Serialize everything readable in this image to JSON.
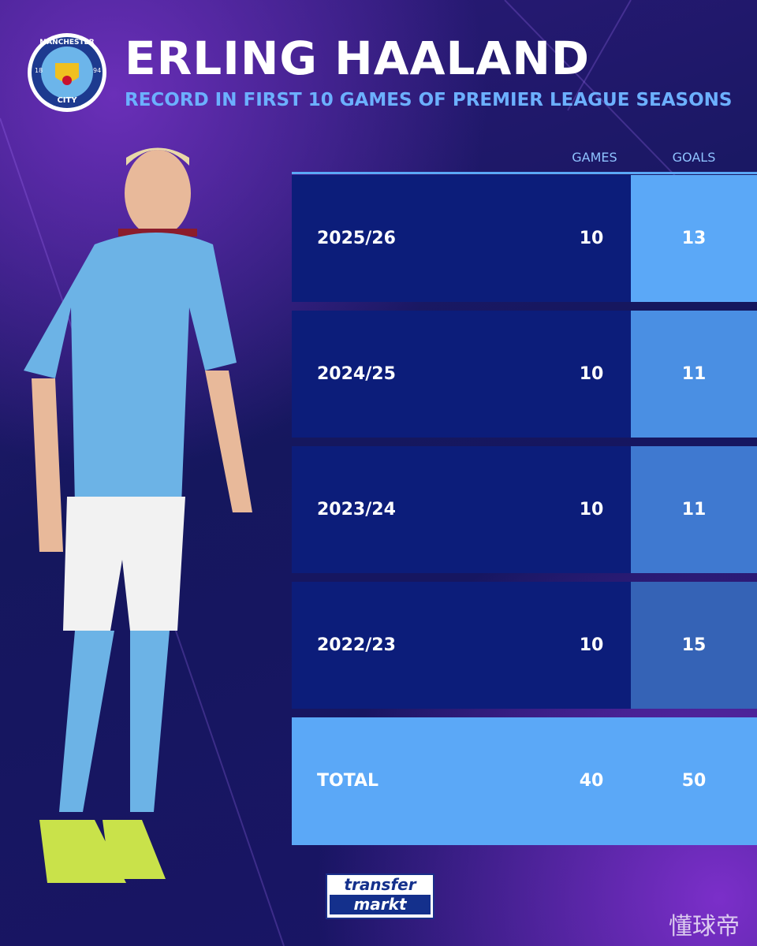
{
  "header": {
    "title": "ERLING HAALAND",
    "subtitle": "RECORD IN FIRST 10 GAMES OF PREMIER LEAGUE SEASONS"
  },
  "badge": {
    "top": "MANCHESTER",
    "bottom": "CITY",
    "left": "18",
    "right": "94"
  },
  "table": {
    "columns": [
      "GAMES",
      "GOALS"
    ],
    "rows": [
      [
        "2025/26",
        "10",
        "13"
      ],
      [
        "2024/25",
        "10",
        "11"
      ],
      [
        "2023/24",
        "10",
        "11"
      ],
      [
        "2022/23",
        "10",
        "15"
      ]
    ],
    "total": [
      "TOTAL",
      "40",
      "50"
    ]
  },
  "footer": {
    "logo_top": "transfer",
    "logo_bottom": "markt",
    "watermark": "懂球帝"
  }
}
